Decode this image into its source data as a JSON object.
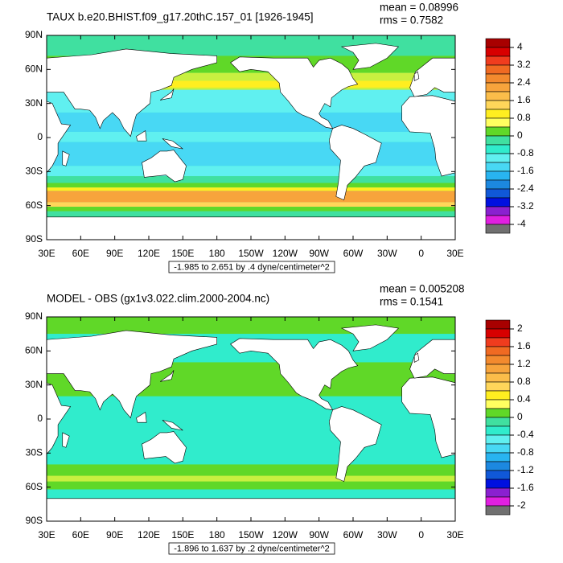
{
  "panels": [
    {
      "title": "TAUX b.e20.BHIST.f09_g17.20thC.157_01 [1926-1945]",
      "mean": "mean = 0.08996",
      "rms": "rms = 0.7582",
      "lat_labels": [
        "90N",
        "60N",
        "30N",
        "0",
        "30S",
        "60S",
        "90S"
      ],
      "lon_labels": [
        "30E",
        "60E",
        "90E",
        "120E",
        "150E",
        "180",
        "150W",
        "120W",
        "90W",
        "60W",
        "30W",
        "0",
        "30E"
      ],
      "info": "-1.985 to 2.651 by .4 dyne/centimeter^2",
      "colorbar": {
        "labels": [
          "4",
          "3.2",
          "2.4",
          "1.6",
          "0.8",
          "0",
          "-0.8",
          "-1.6",
          "-2.4",
          "-3.2",
          "-4"
        ],
        "colors": [
          "#a80000",
          "#d80000",
          "#f03c1e",
          "#f06a22",
          "#f38a2e",
          "#f7a43c",
          "#fbbd4a",
          "#ffd65a",
          "#ffee20",
          "#ffff60",
          "#60d828",
          "#40e0a0",
          "#30eccc",
          "#60f0f0",
          "#48d8f4",
          "#28b4f0",
          "#1c88e0",
          "#1058d8",
          "#0010e0",
          "#8a20d0",
          "#e020e0",
          "#707070"
        ]
      }
    },
    {
      "title": "MODEL - OBS (gx1v3.022.clim.2000-2004.nc)",
      "mean": "mean = 0.005208",
      "rms": "rms = 0.1541",
      "lat_labels": [
        "90N",
        "60N",
        "30N",
        "0",
        "30S",
        "60S",
        "90S"
      ],
      "lon_labels": [
        "30E",
        "60E",
        "90E",
        "120E",
        "150E",
        "180",
        "150W",
        "120W",
        "90W",
        "60W",
        "30W",
        "0",
        "30E"
      ],
      "info": "-1.896 to 1.637 by .2 dyne/centimeter^2",
      "colorbar": {
        "labels": [
          "2",
          "1.6",
          "1.2",
          "0.8",
          "0.4",
          "0",
          "-0.4",
          "-0.8",
          "-1.2",
          "-1.6",
          "-2"
        ],
        "colors": [
          "#a80000",
          "#d80000",
          "#f03c1e",
          "#f06a22",
          "#f38a2e",
          "#f7a43c",
          "#fbbd4a",
          "#ffd65a",
          "#ffee20",
          "#ffff60",
          "#60d828",
          "#40e0a0",
          "#30eccc",
          "#60f0f0",
          "#48d8f4",
          "#28b4f0",
          "#1c88e0",
          "#1058d8",
          "#0010e0",
          "#8a20d0",
          "#e020e0",
          "#707070"
        ]
      }
    }
  ]
}
